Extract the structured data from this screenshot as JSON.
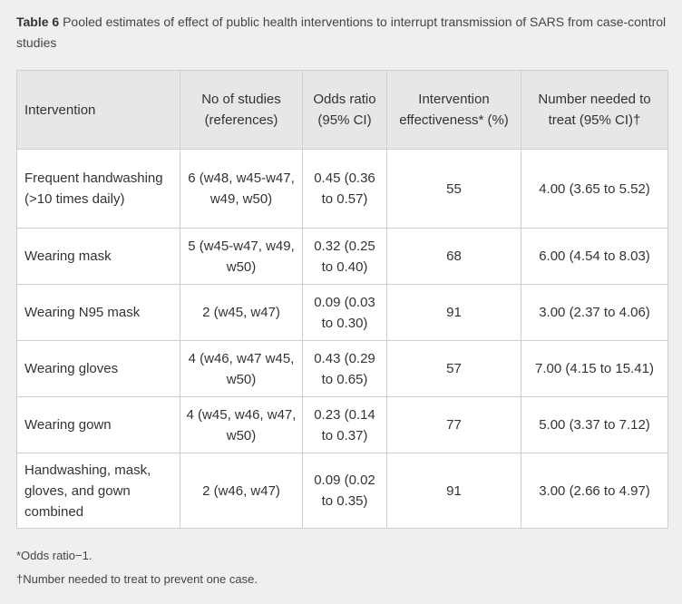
{
  "caption": {
    "label": "Table 6",
    "text": "Pooled estimates of effect of public health interventions to interrupt transmission of SARS from case-control studies"
  },
  "table": {
    "headers": [
      "Intervention",
      "No of studies (references)",
      "Odds ratio (95% CI)",
      "Intervention effectiveness* (%)",
      "Number needed to treat (95% CI)†"
    ],
    "rows": [
      {
        "intervention": "Frequent handwashing (>10 times daily)",
        "studies": "6 (w48, w45-w47, w49, w50)",
        "odds_ratio": "0.45 (0.36 to 0.57)",
        "effectiveness": "55",
        "nnt": "4.00 (3.65 to 5.52)"
      },
      {
        "intervention": "Wearing mask",
        "studies": "5 (w45-w47, w49, w50)",
        "odds_ratio": "0.32 (0.25 to 0.40)",
        "effectiveness": "68",
        "nnt": "6.00 (4.54 to 8.03)"
      },
      {
        "intervention": "Wearing N95 mask",
        "studies": "2 (w45, w47)",
        "odds_ratio": "0.09 (0.03 to 0.30)",
        "effectiveness": "91",
        "nnt": "3.00 (2.37 to 4.06)"
      },
      {
        "intervention": "Wearing gloves",
        "studies": "4 (w46, w47 w45, w50)",
        "odds_ratio": "0.43 (0.29 to 0.65)",
        "effectiveness": "57",
        "nnt": "7.00 (4.15 to 15.41)"
      },
      {
        "intervention": "Wearing gown",
        "studies": "4 (w45, w46, w47, w50)",
        "odds_ratio": "0.23 (0.14 to 0.37)",
        "effectiveness": "77",
        "nnt": "5.00 (3.37 to 7.12)"
      },
      {
        "intervention": "Handwashing, mask, gloves, and gown combined",
        "studies": "2 (w46, w47)",
        "odds_ratio": "0.09 (0.02 to 0.35)",
        "effectiveness": "91",
        "nnt": "3.00 (2.66 to 4.97)"
      }
    ]
  },
  "footnotes": [
    "*Odds ratio−1.",
    "†Number needed to treat to prevent one case."
  ]
}
